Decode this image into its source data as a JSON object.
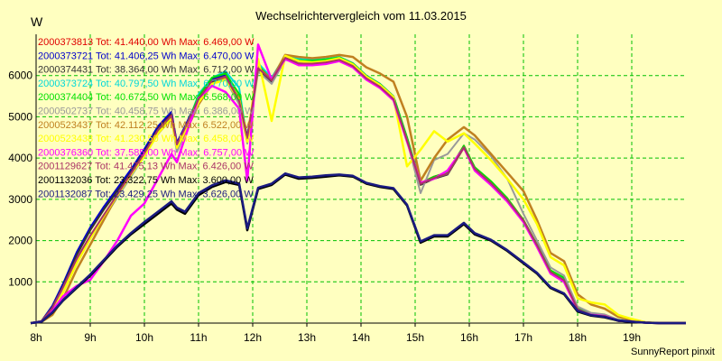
{
  "chart_data": {
    "type": "line",
    "title": "Wechselrichtervergleich vom 11.03.2015",
    "ylabel": "W",
    "xlabel": "",
    "xlim": [
      8,
      20
    ],
    "ylim": [
      0,
      7000
    ],
    "grid": true,
    "legend_position": "top-left",
    "x_ticks": [
      {
        "v": 8,
        "label": "8h"
      },
      {
        "v": 9,
        "label": "9h"
      },
      {
        "v": 10,
        "label": "10h"
      },
      {
        "v": 11,
        "label": "11h"
      },
      {
        "v": 12,
        "label": "12h"
      },
      {
        "v": 13,
        "label": "13h"
      },
      {
        "v": 14,
        "label": "14h"
      },
      {
        "v": 15,
        "label": "15h"
      },
      {
        "v": 16,
        "label": "16h"
      },
      {
        "v": 17,
        "label": "17h"
      },
      {
        "v": 18,
        "label": "18h"
      },
      {
        "v": 19,
        "label": "19h"
      }
    ],
    "y_ticks": [
      {
        "v": 1000,
        "label": "1000"
      },
      {
        "v": 2000,
        "label": "2000"
      },
      {
        "v": 3000,
        "label": "3000"
      },
      {
        "v": 4000,
        "label": "4000"
      },
      {
        "v": 5000,
        "label": "5000"
      },
      {
        "v": 6000,
        "label": "6000"
      }
    ],
    "x": [
      7.9,
      8.1,
      8.3,
      8.5,
      8.75,
      9,
      9.25,
      9.5,
      9.75,
      10,
      10.25,
      10.5,
      10.6,
      10.75,
      11,
      11.25,
      11.5,
      11.75,
      11.9,
      12.1,
      12.35,
      12.6,
      12.85,
      13.1,
      13.35,
      13.6,
      13.85,
      14.1,
      14.35,
      14.6,
      14.85,
      15.1,
      15.35,
      15.6,
      15.9,
      16.1,
      16.4,
      16.7,
      17,
      17.25,
      17.5,
      17.75,
      18,
      18.25,
      18.5,
      18.75,
      19,
      19.25,
      19.5,
      19.75,
      20
    ],
    "series": [
      {
        "name": "2000373813 Tot: 41.440,00 Wh Max: 6.469,00 W",
        "color": "#e00000",
        "values": [
          0,
          50,
          400,
          950,
          1700,
          2300,
          2800,
          3250,
          3700,
          4200,
          4750,
          5100,
          4350,
          4750,
          5450,
          5900,
          6000,
          5400,
          4500,
          6200,
          5900,
          6500,
          6350,
          6350,
          6380,
          6450,
          6300,
          6000,
          5800,
          5500,
          4500,
          3400,
          3550,
          3650,
          4300,
          3750,
          3400,
          3000,
          2500,
          1900,
          1250,
          1050,
          350,
          200,
          180,
          60,
          40,
          10,
          0,
          0,
          0
        ],
        "weight": 1
      },
      {
        "name": "2000373721 Tot: 41.406,25 Wh Max: 6.470,00 W",
        "color": "#0000cc",
        "values": [
          0,
          50,
          420,
          960,
          1720,
          2320,
          2820,
          3270,
          3720,
          4220,
          4770,
          5120,
          4370,
          4770,
          5470,
          5920,
          6020,
          5420,
          4520,
          6220,
          5920,
          6480,
          6330,
          6330,
          6360,
          6430,
          6280,
          5980,
          5780,
          5480,
          4480,
          3380,
          3530,
          3630,
          4280,
          3730,
          3380,
          2980,
          2480,
          1880,
          1230,
          1030,
          330,
          180,
          160,
          50,
          30,
          10,
          0,
          0,
          0
        ],
        "weight": 1
      },
      {
        "name": "2000374431 Tot: 38.364,00 Wh Max: 6.712,00 W",
        "color": "#333333",
        "values": [
          0,
          40,
          380,
          900,
          1650,
          2250,
          2750,
          3200,
          3650,
          4150,
          4700,
          5050,
          4300,
          4700,
          5400,
          5850,
          5950,
          5350,
          4450,
          6150,
          5850,
          6450,
          6300,
          6300,
          6330,
          6400,
          6250,
          5950,
          5750,
          5450,
          4450,
          3350,
          3500,
          3600,
          4250,
          3700,
          3350,
          2950,
          2450,
          1850,
          1200,
          1000,
          320,
          180,
          160,
          50,
          30,
          10,
          0,
          0,
          0
        ],
        "weight": 1
      },
      {
        "name": "2000373724 Tot: 40.797,50 Wh Max: 6.770,00 W",
        "color": "#00d8d8",
        "values": [
          0,
          45,
          350,
          850,
          1500,
          2050,
          2550,
          3050,
          3550,
          4050,
          4600,
          5000,
          4200,
          4650,
          5550,
          5950,
          6100,
          5700,
          4400,
          6300,
          5950,
          6480,
          6400,
          6380,
          6400,
          6450,
          6300,
          6000,
          5800,
          5500,
          4500,
          3400,
          3520,
          3620,
          4280,
          3760,
          3420,
          3000,
          2480,
          1880,
          1250,
          1060,
          350,
          220,
          190,
          70,
          40,
          10,
          0,
          0,
          0
        ],
        "weight": 1
      },
      {
        "name": "2000374404 Tot: 40.672,50 Wh Max: 6.568,00 W",
        "color": "#00e000",
        "values": [
          0,
          45,
          360,
          870,
          1550,
          2100,
          2600,
          3100,
          3600,
          4100,
          4650,
          4980,
          4250,
          4700,
          5500,
          5950,
          6050,
          5550,
          4450,
          6250,
          5900,
          6470,
          6370,
          6360,
          6390,
          6440,
          6290,
          5990,
          5790,
          5490,
          4490,
          3390,
          3550,
          3650,
          4300,
          3780,
          3440,
          3030,
          2500,
          1900,
          1280,
          1100,
          380,
          240,
          200,
          80,
          45,
          10,
          0,
          0,
          0
        ],
        "weight": 1
      },
      {
        "name": "2000502737 Tot: 40.458,75 Wh Max: 6.386,00 W",
        "color": "#999999",
        "values": [
          0,
          40,
          330,
          820,
          1500,
          2050,
          2550,
          3050,
          3550,
          4050,
          4580,
          4950,
          4150,
          4600,
          5400,
          5800,
          5900,
          5300,
          4350,
          6100,
          5800,
          6380,
          6300,
          6290,
          6320,
          6380,
          6230,
          5930,
          5730,
          5430,
          4430,
          3150,
          3950,
          4100,
          4600,
          4450,
          4050,
          3500,
          2650,
          2000,
          1350,
          1150,
          400,
          250,
          210,
          80,
          45,
          10,
          0,
          0,
          0
        ],
        "weight": 1
      },
      {
        "name": "2000523437 Tot: 42.112,25 Wh Max: 6.522,00 W",
        "color": "#c08020",
        "values": [
          0,
          30,
          200,
          600,
          1300,
          1900,
          2500,
          3100,
          3600,
          4100,
          4600,
          4950,
          4300,
          4600,
          5300,
          5800,
          5950,
          5450,
          4400,
          6200,
          5900,
          6500,
          6450,
          6420,
          6450,
          6500,
          6450,
          6200,
          6050,
          5850,
          5000,
          3450,
          4000,
          4450,
          4750,
          4550,
          4100,
          3650,
          3200,
          2500,
          1700,
          1500,
          700,
          450,
          350,
          150,
          80,
          20,
          0,
          0,
          0
        ],
        "weight": 1.5
      },
      {
        "name": "2000523438 Tot: 41.230,50 Wh Max: 6.458,00 W",
        "color": "#ffff00",
        "values": [
          0,
          40,
          300,
          750,
          1450,
          2050,
          2600,
          3100,
          3600,
          4050,
          4600,
          4950,
          4250,
          4650,
          5350,
          5800,
          5900,
          5400,
          4400,
          6400,
          4900,
          6480,
          6350,
          6320,
          6350,
          6420,
          6270,
          5970,
          5770,
          5480,
          3800,
          4200,
          4650,
          4400,
          4600,
          4350,
          3950,
          3500,
          3000,
          2400,
          1600,
          1400,
          600,
          500,
          450,
          200,
          100,
          20,
          0,
          0,
          0
        ],
        "weight": 1.5
      },
      {
        "name": "2000376360 Tot: 37.585,00 Wh Max: 6.757,00 W",
        "color": "#ff00ff",
        "values": [
          0,
          40,
          300,
          650,
          900,
          1050,
          1500,
          2000,
          2600,
          2900,
          3500,
          4100,
          3900,
          4500,
          5450,
          5750,
          5600,
          5200,
          3450,
          6750,
          5900,
          6400,
          6250,
          6250,
          6280,
          6350,
          6200,
          5900,
          5700,
          5400,
          4400,
          3400,
          3500,
          3700,
          4250,
          3700,
          3350,
          2950,
          2450,
          1850,
          1200,
          1000,
          320,
          200,
          170,
          60,
          35,
          10,
          0,
          0,
          0
        ],
        "weight": 1.5
      },
      {
        "name": "2001129627 Tot: 41.475,13 Wh Max: 6.426,00 W",
        "color": "#aa3366",
        "values": [
          0,
          45,
          370,
          880,
          1560,
          2120,
          2620,
          3120,
          3620,
          4120,
          4680,
          5030,
          4330,
          4730,
          5430,
          5880,
          5980,
          5380,
          4480,
          6180,
          5880,
          6430,
          6290,
          6290,
          6320,
          6380,
          6230,
          5930,
          5730,
          5430,
          4430,
          3370,
          3520,
          3620,
          4260,
          3740,
          3390,
          2990,
          2490,
          1890,
          1240,
          1040,
          340,
          190,
          170,
          60,
          35,
          10,
          0,
          0,
          0
        ],
        "weight": 1
      },
      {
        "name": "2001132036 Tot: 23.322,75 Wh Max: 3.600,00 W",
        "color": "#000000",
        "values": [
          0,
          30,
          250,
          550,
          850,
          1150,
          1500,
          1850,
          2150,
          2400,
          2650,
          2900,
          2750,
          2650,
          3100,
          3300,
          3420,
          3350,
          2250,
          3250,
          3350,
          3600,
          3500,
          3520,
          3550,
          3580,
          3550,
          3380,
          3300,
          3250,
          2850,
          1950,
          2100,
          2100,
          2400,
          2150,
          2000,
          1750,
          1450,
          1200,
          850,
          700,
          280,
          180,
          140,
          60,
          30,
          10,
          0,
          0,
          0
        ],
        "weight": 1.5
      },
      {
        "name": "2001132087 Tot: 23.429,25 Wh Max: 3.626,00 W",
        "color": "#1a1a80",
        "values": [
          0,
          35,
          260,
          560,
          870,
          1180,
          1530,
          1880,
          2180,
          2450,
          2700,
          2950,
          2800,
          2700,
          3150,
          3340,
          3460,
          3380,
          2300,
          3280,
          3380,
          3626,
          3530,
          3550,
          3580,
          3600,
          3570,
          3400,
          3320,
          3270,
          2870,
          1980,
          2130,
          2130,
          2430,
          2180,
          2020,
          1770,
          1470,
          1220,
          870,
          720,
          300,
          190,
          150,
          65,
          35,
          10,
          0,
          0,
          0
        ],
        "weight": 1.5
      }
    ]
  },
  "footer": "SunnyReport pinxit"
}
